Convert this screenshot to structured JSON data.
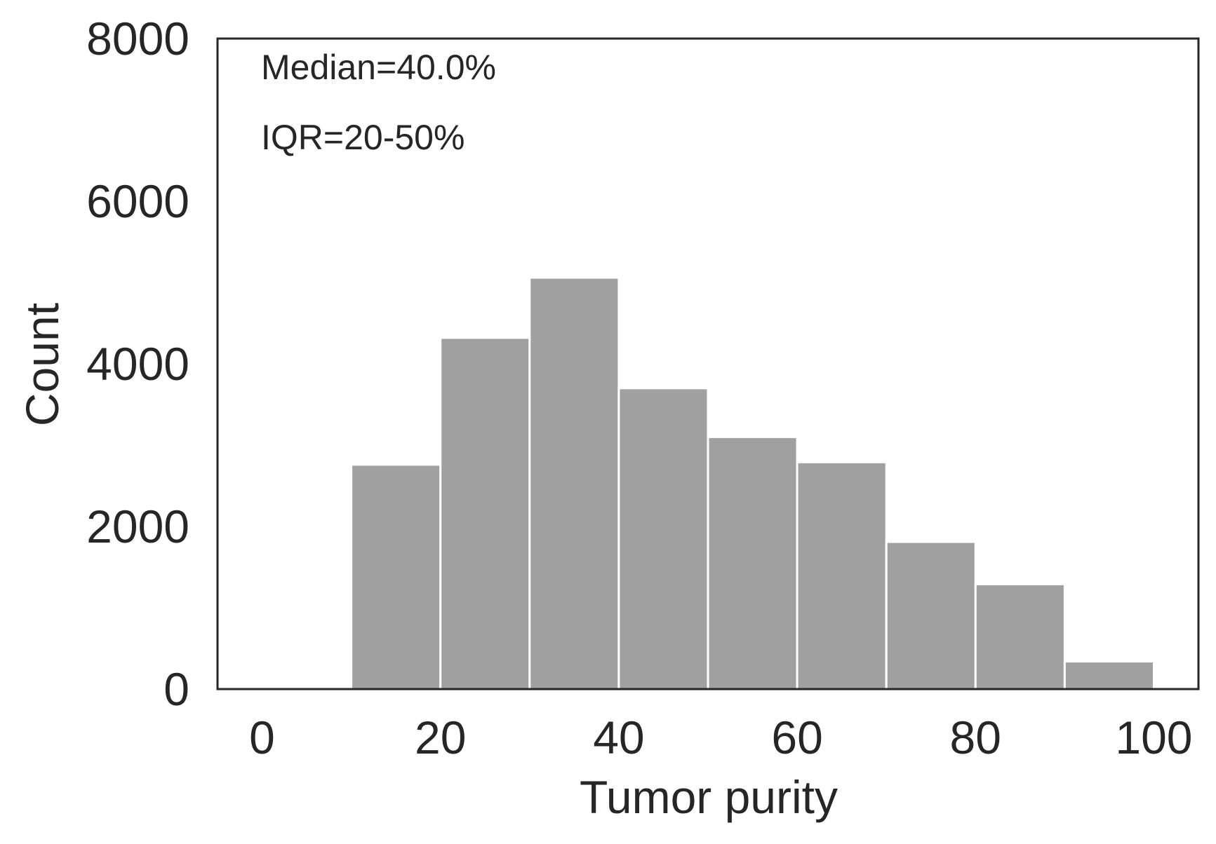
{
  "chart_data": {
    "type": "bar",
    "title": "",
    "xlabel": "Tumor purity",
    "ylabel": "Count",
    "xlim": [
      -5,
      105
    ],
    "ylim": [
      0,
      8000
    ],
    "x_ticks": [
      0,
      20,
      40,
      60,
      80,
      100
    ],
    "y_ticks": [
      0,
      2000,
      4000,
      6000,
      8000
    ],
    "bin_edges": [
      0,
      10,
      20,
      30,
      40,
      50,
      60,
      70,
      80,
      90,
      100
    ],
    "values": [
      0,
      2760,
      4320,
      5060,
      3700,
      3100,
      2790,
      1810,
      1290,
      340
    ],
    "grid": false,
    "legend": null,
    "annotations": [
      "Median=40.0%",
      "IQR=20-50%"
    ],
    "colors": {
      "bar": "#a0a0a0",
      "axis": "#262626",
      "text": "#262626",
      "background": "#ffffff"
    }
  }
}
